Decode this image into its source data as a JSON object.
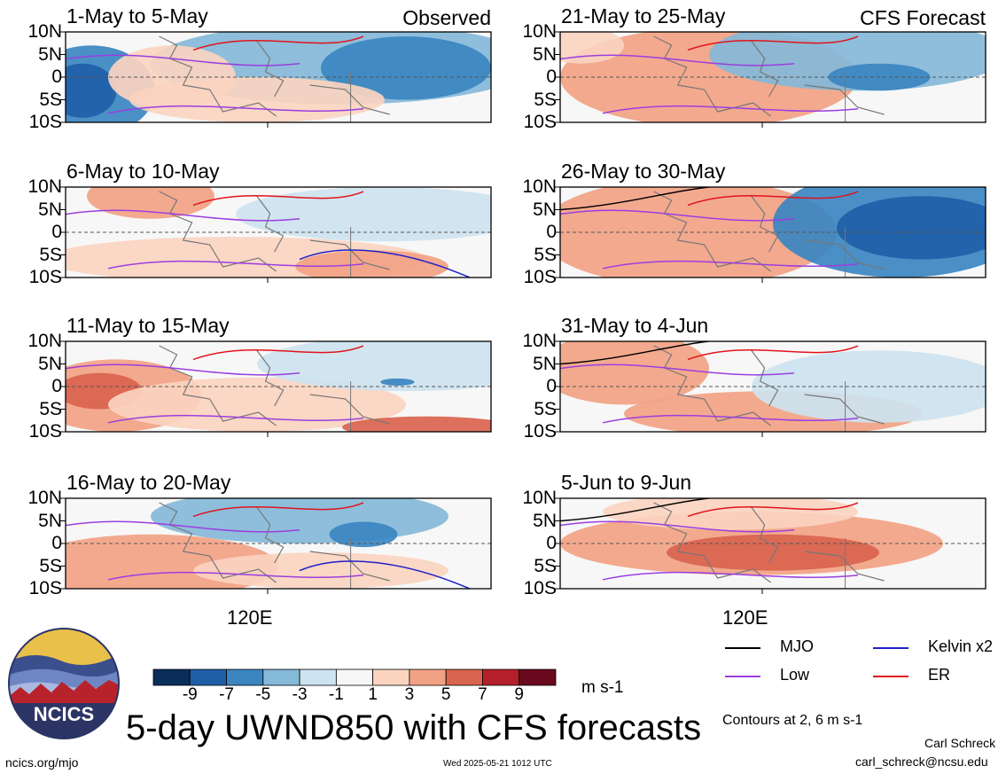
{
  "chart_data": {
    "type": "heatmap",
    "title": "5-day UWND850 with CFS forecasts",
    "units": "m s-1",
    "x_tick_label": "120E",
    "y_tick_labels": [
      "10N",
      "5N",
      "0",
      "5S",
      "10S"
    ],
    "colorbar": {
      "labels": [
        "-9",
        "-7",
        "-5",
        "-3",
        "-1",
        "1",
        "3",
        "5",
        "7",
        "9"
      ],
      "colors": [
        "#0a2d5a",
        "#1f5fa8",
        "#3b86c1",
        "#84b9d8",
        "#cde3ef",
        "#f7f7f7",
        "#fbd4c0",
        "#f2a284",
        "#d9644f",
        "#b3202b",
        "#6b0a1e"
      ]
    },
    "panels": [
      {
        "period": "1-May to 5-May",
        "source": "Observed",
        "tag": "Observed"
      },
      {
        "period": "6-May to 10-May",
        "source": "Observed",
        "tag": ""
      },
      {
        "period": "11-May to 15-May",
        "source": "Observed",
        "tag": ""
      },
      {
        "period": "16-May to 20-May",
        "source": "Observed",
        "tag": ""
      },
      {
        "period": "21-May to 25-May",
        "source": "CFS Forecast",
        "tag": "CFS Forecast"
      },
      {
        "period": "26-May to 30-May",
        "source": "CFS Forecast",
        "tag": ""
      },
      {
        "period": "31-May to 4-Jun",
        "source": "CFS Forecast",
        "tag": ""
      },
      {
        "period": "5-Jun to 9-Jun",
        "source": "CFS Forecast",
        "tag": ""
      }
    ],
    "contour_legend": [
      {
        "name": "MJO",
        "color": "#000000"
      },
      {
        "name": "Kelvin x2",
        "color": "#1f22c9"
      },
      {
        "name": "Low",
        "color": "#9b3ee0"
      },
      {
        "name": "ER",
        "color": "#e0141c"
      }
    ],
    "contour_note": "Contours at 2, 6 m s-1"
  },
  "footer": {
    "logo_text": "NCICS",
    "url": "ncics.org/mjo",
    "timestamp": "Wed 2025-05-21 1012 UTC",
    "author": "Carl Schreck",
    "email": "carl_schreck@ncsu.edu"
  }
}
